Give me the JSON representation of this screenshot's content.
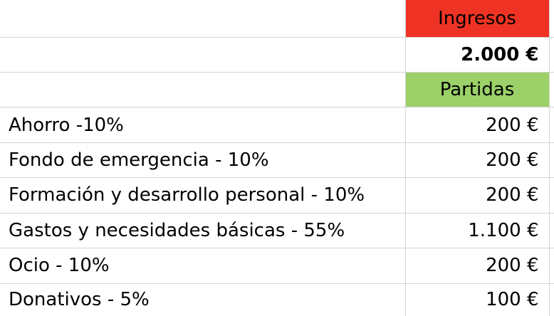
{
  "colors": {
    "ingresos_header": "#ee3324",
    "partidas_header": "#9bd168",
    "grid_line": "#d4d4d4"
  },
  "headers": {
    "ingresos": "Ingresos",
    "partidas": "Partidas"
  },
  "total": "2.000 €",
  "rows": [
    {
      "label": "Ahorro -10%",
      "value": "200 €"
    },
    {
      "label": "Fondo de emergencia - 10%",
      "value": "200 €"
    },
    {
      "label": "Formación y desarrollo personal - 10%",
      "value": "200 €"
    },
    {
      "label": "Gastos y necesidades básicas - 55%",
      "value": "1.100 €"
    },
    {
      "label": "Ocio - 10%",
      "value": "200 €"
    },
    {
      "label": "Donativos - 5%",
      "value": "100 €"
    }
  ]
}
